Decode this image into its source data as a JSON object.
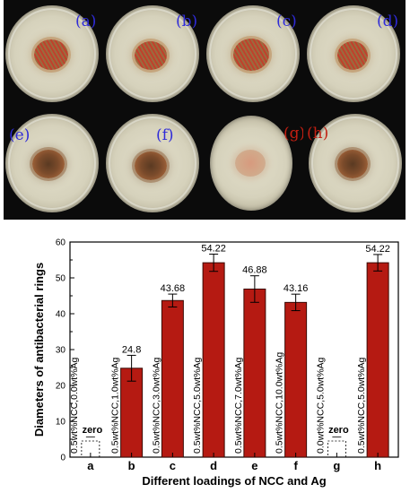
{
  "photo_panel": {
    "panels": [
      {
        "label": "(a)"
      },
      {
        "label": "(b)"
      },
      {
        "label": "(c)"
      },
      {
        "label": "(d)"
      },
      {
        "label": "(e)"
      },
      {
        "label": "(f)"
      },
      {
        "label": "(g)"
      },
      {
        "label": "(h)"
      }
    ]
  },
  "chart_data": {
    "type": "bar",
    "xlabel": "Different loadings of NCC and Ag",
    "ylabel": "Diameters of antibacterial rings",
    "ylim": [
      0,
      60
    ],
    "yticks": [
      0,
      10,
      20,
      30,
      40,
      50,
      60
    ],
    "categories": [
      "a",
      "b",
      "c",
      "d",
      "e",
      "f",
      "g",
      "h"
    ],
    "values": [
      0,
      24.8,
      43.68,
      54.22,
      46.88,
      43.16,
      0,
      54.22
    ],
    "errors": [
      0,
      3.6,
      1.8,
      2.4,
      3.7,
      2.3,
      0,
      2.3
    ],
    "value_labels": [
      "zero",
      "24.8",
      "43.68",
      "54.22",
      "46.88",
      "43.16",
      "zero",
      "54.22"
    ],
    "sample_labels": [
      "0.5wt%NCC,0.0wt%Ag",
      "0.5wt%NCC,1.0wt%Ag",
      "0.5wt%NCC,3.0wt%Ag",
      "0.5wt%NCC,5.0wt%Ag",
      "0.5wt%NCC,7.0wt%Ag",
      "0.5wt%NCC,10.0wt%Ag",
      "0.0wt%NCC,5.0wt%Ag",
      "0.5wt%NCC,5.0wt%Ag"
    ],
    "bar_color": "#b51a12",
    "bar_edge": "#3a0a05",
    "grid": false
  }
}
